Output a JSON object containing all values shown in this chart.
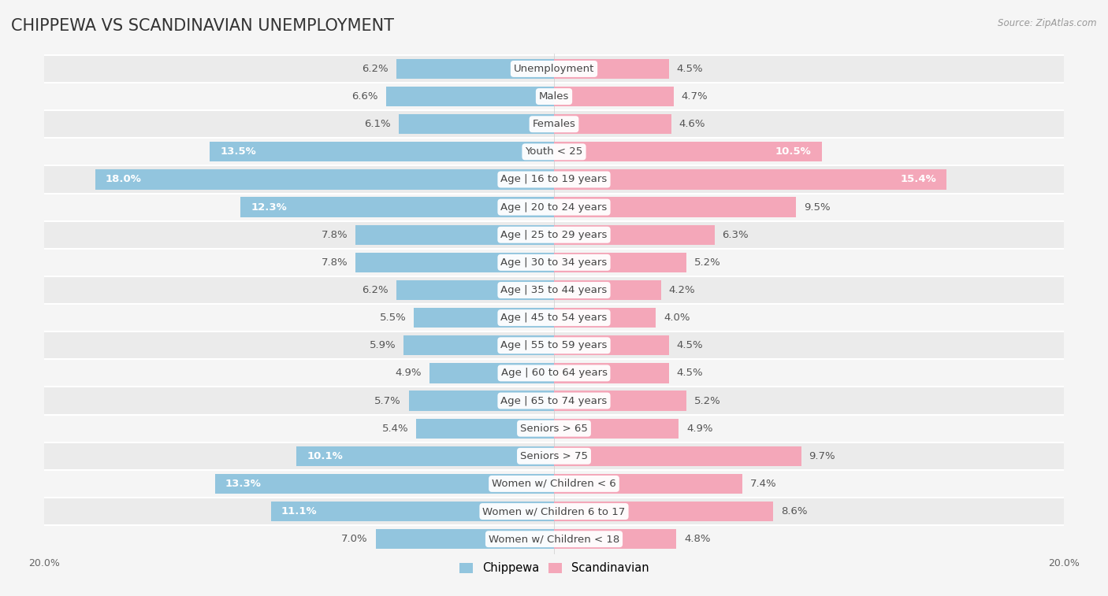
{
  "title": "CHIPPEWA VS SCANDINAVIAN UNEMPLOYMENT",
  "source": "Source: ZipAtlas.com",
  "categories": [
    "Unemployment",
    "Males",
    "Females",
    "Youth < 25",
    "Age | 16 to 19 years",
    "Age | 20 to 24 years",
    "Age | 25 to 29 years",
    "Age | 30 to 34 years",
    "Age | 35 to 44 years",
    "Age | 45 to 54 years",
    "Age | 55 to 59 years",
    "Age | 60 to 64 years",
    "Age | 65 to 74 years",
    "Seniors > 65",
    "Seniors > 75",
    "Women w/ Children < 6",
    "Women w/ Children 6 to 17",
    "Women w/ Children < 18"
  ],
  "chippewa": [
    6.2,
    6.6,
    6.1,
    13.5,
    18.0,
    12.3,
    7.8,
    7.8,
    6.2,
    5.5,
    5.9,
    4.9,
    5.7,
    5.4,
    10.1,
    13.3,
    11.1,
    7.0
  ],
  "scandinavian": [
    4.5,
    4.7,
    4.6,
    10.5,
    15.4,
    9.5,
    6.3,
    5.2,
    4.2,
    4.0,
    4.5,
    4.5,
    5.2,
    4.9,
    9.7,
    7.4,
    8.6,
    4.8
  ],
  "chippewa_color": "#92C5DE",
  "scandinavian_color": "#F4A7B9",
  "highlight_threshold": 10.0,
  "xlim": 20,
  "background_color": "#f5f5f5",
  "row_even_color": "#ebebeb",
  "row_odd_color": "#f5f5f5",
  "divider_color": "#ffffff",
  "title_fontsize": 15,
  "label_fontsize": 9.5,
  "category_fontsize": 9.5,
  "axis_fontsize": 9
}
